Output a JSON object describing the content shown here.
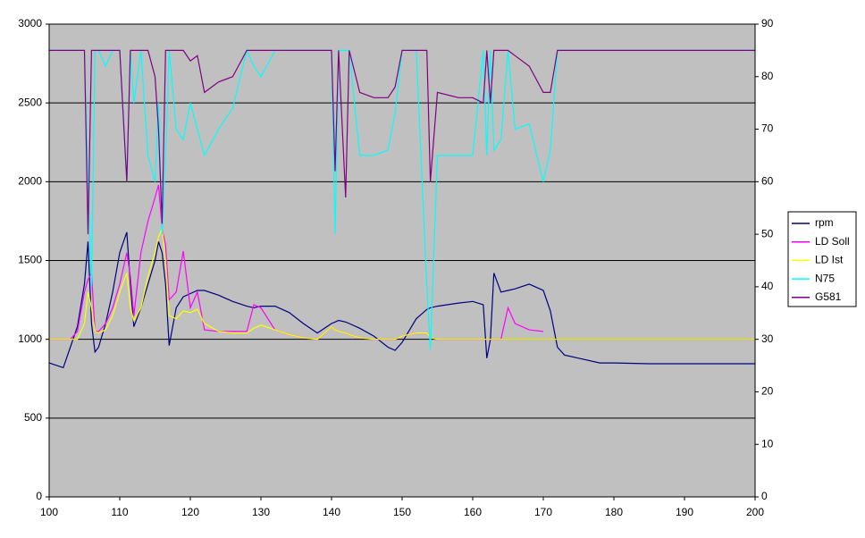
{
  "chart_data": {
    "type": "line",
    "x": [
      100,
      102,
      103,
      104,
      105,
      105.5,
      106,
      106.5,
      107,
      108,
      109,
      110,
      111,
      111.5,
      112,
      113,
      114,
      115,
      115.5,
      116,
      116.5,
      117,
      118,
      119,
      120,
      121,
      122,
      124,
      126,
      128,
      129,
      130,
      132,
      134,
      136,
      138,
      140,
      140.5,
      141,
      142,
      142.5,
      144,
      146,
      148,
      149,
      150,
      152,
      153.5,
      154,
      155,
      158,
      160,
      161.5,
      162,
      162.5,
      163,
      164,
      165,
      166,
      168,
      170,
      171,
      172,
      173,
      175,
      178,
      180,
      185,
      190,
      195,
      200
    ],
    "series": [
      {
        "name": "rpm",
        "color": "#000080",
        "values": [
          850,
          820,
          950,
          1080,
          1350,
          1620,
          1100,
          920,
          950,
          1100,
          1300,
          1550,
          1680,
          1350,
          1080,
          1200,
          1350,
          1500,
          1620,
          1550,
          1350,
          960,
          1200,
          1270,
          1290,
          1310,
          1310,
          1280,
          1240,
          1210,
          1200,
          1210,
          1210,
          1170,
          1100,
          1040,
          1100,
          1110,
          1120,
          1110,
          1100,
          1070,
          1020,
          950,
          930,
          980,
          1130,
          1190,
          1200,
          1210,
          1230,
          1240,
          1220,
          880,
          1000,
          1420,
          1300,
          1310,
          1320,
          1350,
          1310,
          1180,
          950,
          900,
          880,
          850,
          850,
          845,
          845,
          845,
          845
        ]
      },
      {
        "name": "LD Soll",
        "color": "#ff00ff",
        "values": [
          1000,
          1000,
          1000,
          1050,
          1300,
          1380,
          1420,
          1050,
          1050,
          1100,
          1200,
          1350,
          1550,
          1400,
          1150,
          1550,
          1750,
          1900,
          1980,
          1700,
          1600,
          1250,
          1300,
          1560,
          1200,
          1300,
          1060,
          1050,
          1050,
          1050,
          1220,
          1200,
          1060,
          1030,
          1010,
          1000,
          1080,
          1060,
          1050,
          1040,
          1030,
          1010,
          1000,
          1000,
          1000,
          1020,
          1040,
          1040,
          1010,
          1000,
          1000,
          1000,
          1000,
          1000,
          1000,
          1000,
          1000,
          1200,
          1100,
          1060,
          1050,
          null,
          null,
          null,
          null,
          null,
          null,
          null,
          null,
          null,
          null
        ]
      },
      {
        "name": "LD Ist",
        "color": "#ffff00",
        "values": [
          1000,
          1000,
          1000,
          1000,
          1100,
          1300,
          1200,
          1050,
          1040,
          1060,
          1150,
          1300,
          1420,
          1200,
          1120,
          1200,
          1400,
          1550,
          1650,
          1700,
          1500,
          1150,
          1130,
          1180,
          1170,
          1190,
          1100,
          1050,
          1040,
          1040,
          1070,
          1090,
          1060,
          1030,
          1010,
          1000,
          1080,
          1060,
          1050,
          1040,
          1030,
          1010,
          1000,
          1000,
          1000,
          1020,
          1040,
          1040,
          1010,
          1000,
          1000,
          1000,
          1000,
          1000,
          1000,
          1000,
          1000,
          1000,
          1000,
          1000,
          1000,
          1000,
          1000,
          1000,
          1000,
          1000,
          1000,
          1000,
          1000,
          1000,
          1000
        ]
      },
      {
        "name": "N75",
        "color": "#00ffff",
        "axis": "y2",
        "values": [
          85,
          85,
          85,
          85,
          85,
          60,
          40,
          85,
          85,
          82,
          85,
          85,
          60,
          85,
          75,
          85,
          65,
          60,
          75,
          50,
          65,
          85,
          70,
          68,
          75,
          70,
          65,
          70,
          74,
          85,
          82,
          80,
          85,
          85,
          85,
          85,
          85,
          50,
          85,
          85,
          85,
          65,
          65,
          66,
          73,
          85,
          85,
          40,
          28,
          65,
          65,
          65,
          85,
          65,
          85,
          66,
          68,
          85,
          70,
          71,
          60,
          66,
          85,
          85,
          85,
          85,
          85,
          85,
          85,
          85,
          85
        ]
      },
      {
        "name": "G581",
        "color": "#800080",
        "axis": "y2",
        "values": [
          85,
          85,
          85,
          85,
          85,
          50,
          85,
          85,
          85,
          85,
          85,
          85,
          60,
          85,
          85,
          85,
          85,
          80,
          70,
          52,
          85,
          85,
          85,
          85,
          83,
          84,
          77,
          79,
          80,
          85,
          85,
          85,
          85,
          85,
          85,
          85,
          85,
          62,
          85,
          57,
          85,
          77,
          76,
          76,
          78,
          85,
          85,
          85,
          60,
          77,
          76,
          76,
          75,
          85,
          75,
          85,
          85,
          85,
          84,
          82,
          77,
          77,
          85,
          85,
          85,
          85,
          85,
          85,
          85,
          85,
          85
        ]
      }
    ],
    "xlim": [
      100,
      200
    ],
    "xticks": [
      100,
      110,
      120,
      130,
      140,
      150,
      160,
      170,
      180,
      190,
      200
    ],
    "ylim": [
      0,
      3000
    ],
    "yticks": [
      0,
      500,
      1000,
      1500,
      2000,
      2500,
      3000
    ],
    "y2lim": [
      0,
      90
    ],
    "y2ticks": [
      0,
      10,
      20,
      30,
      40,
      50,
      60,
      70,
      80,
      90
    ],
    "grid": true,
    "legend": "right"
  }
}
